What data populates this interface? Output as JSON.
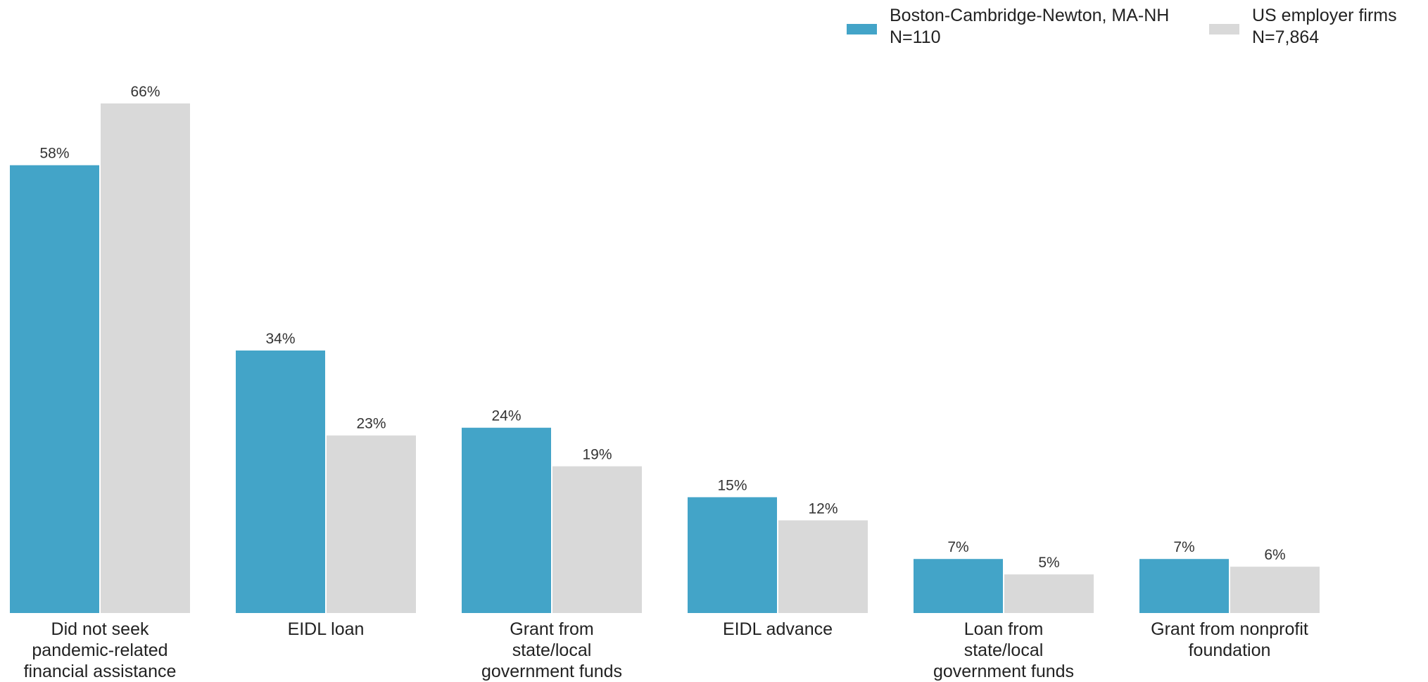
{
  "chart_data": {
    "type": "bar",
    "title": "",
    "xlabel": "",
    "ylabel": "",
    "ylim": [
      0,
      70
    ],
    "grid": false,
    "legend_position": "top-right",
    "categories": [
      [
        "Did not seek",
        "pandemic-related",
        "financial assistance"
      ],
      [
        "EIDL loan"
      ],
      [
        "Grant from",
        "state/local",
        "government funds"
      ],
      [
        "EIDL advance"
      ],
      [
        "Loan from",
        "state/local",
        "government funds"
      ],
      [
        "Grant from nonprofit",
        "foundation"
      ]
    ],
    "series": [
      {
        "name": "Boston-Cambridge-Newton, MA-NH",
        "n_label": "N=110",
        "color": "#43a4c8",
        "values": [
          58,
          34,
          24,
          15,
          7,
          7
        ],
        "labels": [
          "58%",
          "34%",
          "24%",
          "15%",
          "7%",
          "7%"
        ]
      },
      {
        "name": "US employer firms",
        "n_label": "N=7,864",
        "color": "#d9d9d9",
        "values": [
          66,
          23,
          19,
          12,
          5,
          6
        ],
        "labels": [
          "66%",
          "23%",
          "19%",
          "12%",
          "5%",
          "6%"
        ]
      }
    ]
  }
}
